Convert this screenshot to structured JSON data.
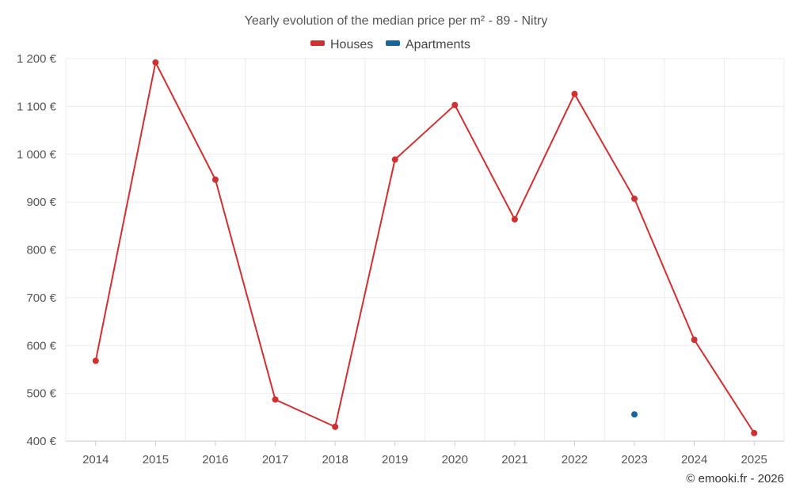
{
  "chart_data": {
    "type": "line",
    "title": "Yearly evolution of the median price per m² - 89 - Nitry",
    "categories": [
      "2014",
      "2015",
      "2016",
      "2017",
      "2018",
      "2019",
      "2020",
      "2021",
      "2022",
      "2023",
      "2024",
      "2025"
    ],
    "series": [
      {
        "name": "Houses",
        "color": "#d32f2f",
        "values": [
          568,
          1192,
          947,
          487,
          430,
          989,
          1103,
          864,
          1126,
          907,
          612,
          417
        ]
      },
      {
        "name": "Apartments",
        "color": "#1565a0",
        "values": [
          null,
          null,
          null,
          null,
          null,
          null,
          null,
          null,
          null,
          456,
          null,
          null
        ]
      }
    ],
    "ylim": [
      400,
      1200
    ],
    "yticks": [
      400,
      500,
      600,
      700,
      800,
      900,
      1000,
      1100,
      1200
    ],
    "ytick_labels": [
      "400 €",
      "500 €",
      "600 €",
      "700 €",
      "800 €",
      "900 €",
      "1 000 €",
      "1 100 €",
      "1 200 €"
    ],
    "grid": true,
    "legend_position": "top-center",
    "credit": "© emooki.fr - 2026"
  }
}
